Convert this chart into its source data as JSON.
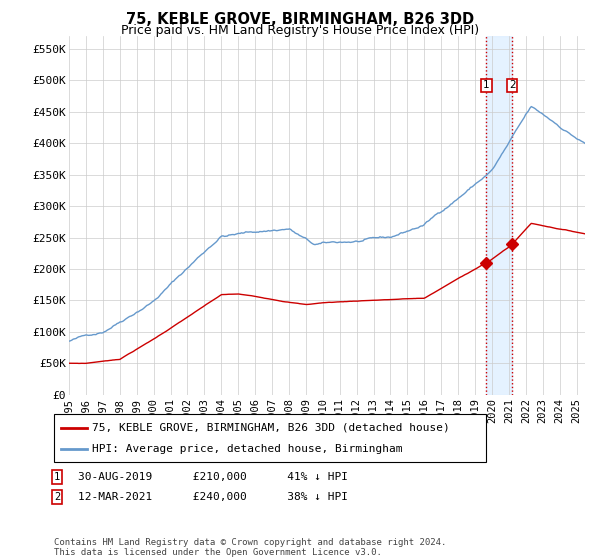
{
  "title": "75, KEBLE GROVE, BIRMINGHAM, B26 3DD",
  "subtitle": "Price paid vs. HM Land Registry's House Price Index (HPI)",
  "ylim": [
    0,
    570000
  ],
  "yticks": [
    0,
    50000,
    100000,
    150000,
    200000,
    250000,
    300000,
    350000,
    400000,
    450000,
    500000,
    550000
  ],
  "ytick_labels": [
    "£0",
    "£50K",
    "£100K",
    "£150K",
    "£200K",
    "£250K",
    "£300K",
    "£350K",
    "£400K",
    "£450K",
    "£500K",
    "£550K"
  ],
  "hpi_color": "#6699cc",
  "price_color": "#cc0000",
  "background_color": "#ffffff",
  "grid_color": "#cccccc",
  "point1_year": 2019.67,
  "point1_price": 210000,
  "point1_date": "30-AUG-2019",
  "point1_label": "41% ↓ HPI",
  "point2_year": 2021.19,
  "point2_price": 240000,
  "point2_date": "12-MAR-2021",
  "point2_label": "38% ↓ HPI",
  "legend_line1": "75, KEBLE GROVE, BIRMINGHAM, B26 3DD (detached house)",
  "legend_line2": "HPI: Average price, detached house, Birmingham",
  "footer": "Contains HM Land Registry data © Crown copyright and database right 2024.\nThis data is licensed under the Open Government Licence v3.0.",
  "xmin": 1995,
  "xmax": 2025.5
}
